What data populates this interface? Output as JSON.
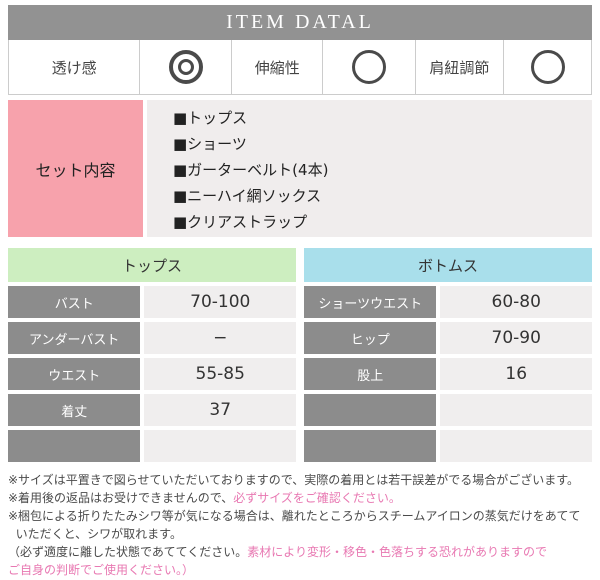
{
  "header": {
    "title": "ITEM DATAL"
  },
  "features": [
    {
      "label": "透け感",
      "rating": "double-circle",
      "rating_name": "double-circle-symbol"
    },
    {
      "label": "伸縮性",
      "rating": "circle",
      "rating_name": "circle-symbol"
    },
    {
      "label": "肩紐調節",
      "rating": "circle",
      "rating_name": "circle-symbol"
    }
  ],
  "set_contents": {
    "label": "セット内容",
    "items": [
      "■トップス",
      "■ショーツ",
      "■ガーターベルト(4本)",
      "■ニーハイ網ソックス",
      "■クリアストラップ"
    ]
  },
  "size_tables": [
    {
      "title": "トップス",
      "header_color": "#cdeec0",
      "rows": [
        {
          "label": "バスト",
          "value": "70-100"
        },
        {
          "label": "アンダーバスト",
          "value": "−"
        },
        {
          "label": "ウエスト",
          "value": "55-85"
        },
        {
          "label": "着丈",
          "value": "37"
        },
        {
          "label": "",
          "value": ""
        }
      ]
    },
    {
      "title": "ボトムス",
      "header_color": "#a9dfeb",
      "rows": [
        {
          "label": "ショーツウエスト",
          "value": "60-80"
        },
        {
          "label": "ヒップ",
          "value": "70-90"
        },
        {
          "label": "股上",
          "value": "16"
        },
        {
          "label": "",
          "value": ""
        },
        {
          "label": "",
          "value": ""
        }
      ]
    }
  ],
  "notes": [
    [
      {
        "t": "※サイズは平置きで図らせていただいておりますので、実際の着用とは若干誤差がでる場合がございます。",
        "c": "normal"
      }
    ],
    [
      {
        "t": "※着用後の返品はお受けできませんので、",
        "c": "normal"
      },
      {
        "t": "必ずサイズをご確認ください。",
        "c": "pink"
      }
    ],
    [
      {
        "t": "※梱包による折りたたみシワ等が気になる場合は、離れたところからスチームアイロンの蒸気だけをあてて",
        "c": "normal"
      }
    ],
    [
      {
        "t": "  いただくと、シワが取れます。",
        "c": "normal"
      }
    ],
    [
      {
        "t": "（必ず適度に離した状態であててください。",
        "c": "normal"
      },
      {
        "t": "素材により変形・移色・色落ちする恐れがありますので",
        "c": "pink"
      }
    ],
    [
      {
        "t": "ご自身の判断でご使用ください。）",
        "c": "pink"
      }
    ]
  ],
  "colors": {
    "title_bar": "#929292",
    "set_label_bg": "#f7a2ac",
    "list_bg": "#f0eded",
    "tops_header": "#cdeec0",
    "bottoms_header": "#a9dfeb",
    "row_label_bg": "#8c8c8c",
    "row_value_bg": "#f0eeee",
    "note_pink": "#e878b2",
    "symbol": "#4a4a4a"
  }
}
